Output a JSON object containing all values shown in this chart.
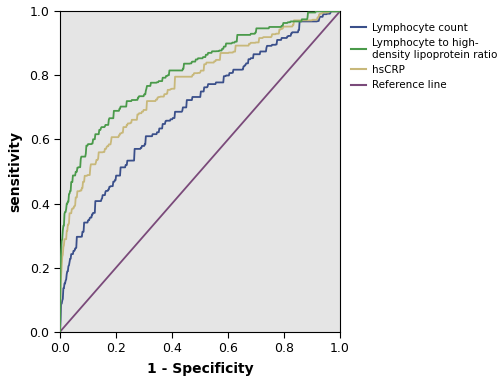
{
  "title": "",
  "xlabel": "1 - Specificity",
  "ylabel": "sensitivity",
  "xlim": [
    0.0,
    1.0
  ],
  "ylim": [
    0.0,
    1.0
  ],
  "xticks": [
    0.0,
    0.2,
    0.4,
    0.6,
    0.8,
    1.0
  ],
  "yticks": [
    0.0,
    0.2,
    0.4,
    0.6,
    0.8,
    1.0
  ],
  "plot_bg_color": "#e5e5e5",
  "fig_bg_color": "#ffffff",
  "line_colors": {
    "lymphocyte_count": "#3a4f8a",
    "lhr": "#4a9a4a",
    "hscrp": "#c8b87a",
    "reference": "#7a4a7a"
  },
  "legend_labels": [
    "Lymphocyte count",
    "Lymphocyte to high-\ndensity lipoprotein ratio",
    "hsCRP",
    "Reference line"
  ],
  "auc_lymphocyte": 0.68,
  "auc_lhr": 0.8,
  "auc_hscrp": 0.76,
  "figsize": [
    5.0,
    3.77
  ],
  "dpi": 100
}
